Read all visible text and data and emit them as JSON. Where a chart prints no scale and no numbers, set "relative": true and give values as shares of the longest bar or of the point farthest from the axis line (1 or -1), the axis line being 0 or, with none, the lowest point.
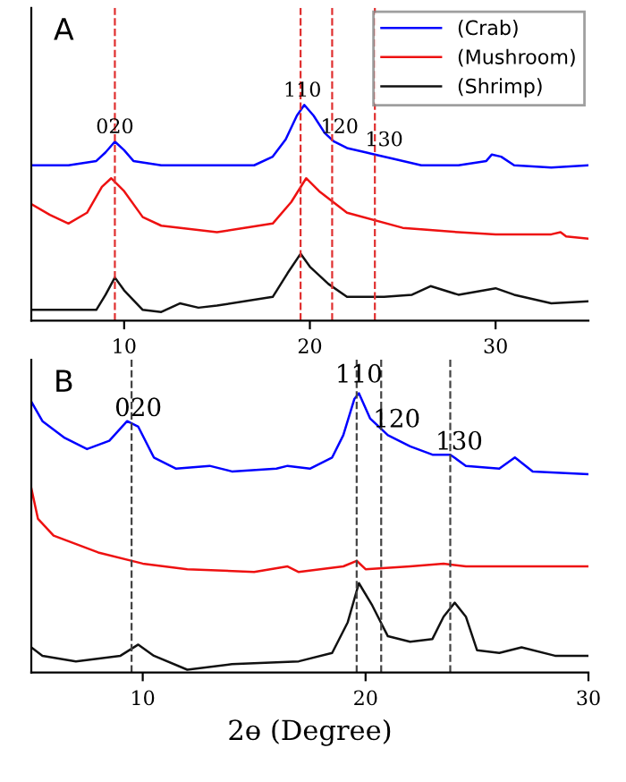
{
  "chart_data": [
    {
      "type": "line",
      "relative": true,
      "xlim": [
        5,
        35
      ],
      "xticks": [
        10,
        20,
        30
      ],
      "legend": "top right",
      "grid": false,
      "annotations": [
        "A",
        {
          "text": "020",
          "x": 9.5,
          "y": 0.85
        },
        {
          "text": "110",
          "x": 19.6,
          "y": 1.02
        },
        {
          "text": "120",
          "x": 21.6,
          "y": 0.85
        },
        {
          "text": "130",
          "x": 24.0,
          "y": 0.79
        }
      ],
      "ref_lines": [
        {
          "axis": "x",
          "value": 9.5,
          "color": "#e03030",
          "line_style": "dashed"
        },
        {
          "axis": "x",
          "value": 19.5,
          "color": "#e03030",
          "line_style": "dashed"
        },
        {
          "axis": "x",
          "value": 21.2,
          "color": "#e03030",
          "line_style": "dashed"
        },
        {
          "axis": "x",
          "value": 23.5,
          "color": "#e03030",
          "line_style": "dashed"
        }
      ],
      "series": [
        {
          "name": "(Crab)",
          "color": "#0000ff",
          "x": [
            5,
            7,
            8.5,
            9,
            9.5,
            10,
            10.5,
            12,
            15,
            17,
            18,
            18.7,
            19.3,
            19.7,
            20.2,
            20.8,
            21.3,
            22,
            23,
            23.5,
            24.5,
            26,
            28,
            29.5,
            29.8,
            30.3,
            31,
            33,
            35
          ],
          "values": [
            0.72,
            0.72,
            0.74,
            0.78,
            0.83,
            0.79,
            0.74,
            0.72,
            0.72,
            0.72,
            0.76,
            0.84,
            0.95,
            1.0,
            0.95,
            0.87,
            0.83,
            0.8,
            0.78,
            0.77,
            0.75,
            0.72,
            0.72,
            0.74,
            0.77,
            0.76,
            0.72,
            0.71,
            0.72
          ]
        },
        {
          "name": "(Mushroom)",
          "color": "#ee1111",
          "x": [
            5,
            6,
            7,
            8,
            8.8,
            9.3,
            10,
            11,
            12,
            15,
            18,
            19,
            19.8,
            20.5,
            22,
            25,
            28,
            30,
            33,
            33.5,
            33.8,
            35
          ],
          "values": [
            0.54,
            0.49,
            0.45,
            0.5,
            0.62,
            0.66,
            0.6,
            0.48,
            0.44,
            0.41,
            0.45,
            0.55,
            0.66,
            0.6,
            0.5,
            0.43,
            0.41,
            0.4,
            0.4,
            0.41,
            0.39,
            0.38
          ]
        },
        {
          "name": "(Shrimp)",
          "color": "#111111",
          "x": [
            5,
            7,
            8.5,
            9,
            9.5,
            10,
            11,
            12,
            13,
            14,
            15,
            18,
            18.8,
            19.5,
            20,
            21,
            22,
            24,
            25.5,
            26.5,
            28,
            30,
            31,
            33,
            35
          ],
          "values": [
            0.05,
            0.05,
            0.05,
            0.12,
            0.2,
            0.14,
            0.05,
            0.04,
            0.08,
            0.06,
            0.07,
            0.11,
            0.22,
            0.31,
            0.25,
            0.17,
            0.11,
            0.11,
            0.12,
            0.16,
            0.12,
            0.15,
            0.12,
            0.08,
            0.09
          ]
        }
      ]
    },
    {
      "type": "line",
      "relative": true,
      "xlim": [
        5,
        30
      ],
      "xticks": [
        10,
        20,
        30
      ],
      "xlabel": "2ɵ (Degree)",
      "grid": false,
      "annotations": [
        "B",
        {
          "text": "020",
          "x": 9.8,
          "y": 0.9
        },
        {
          "text": "110",
          "x": 19.7,
          "y": 1.02
        },
        {
          "text": "120",
          "x": 21.4,
          "y": 0.86
        },
        {
          "text": "130",
          "x": 24.2,
          "y": 0.78
        }
      ],
      "ref_lines": [
        {
          "axis": "x",
          "value": 9.5,
          "color": "#444444",
          "line_style": "dashed"
        },
        {
          "axis": "x",
          "value": 19.6,
          "color": "#444444",
          "line_style": "dashed"
        },
        {
          "axis": "x",
          "value": 20.7,
          "color": "#444444",
          "line_style": "dashed"
        },
        {
          "axis": "x",
          "value": 23.8,
          "color": "#444444",
          "line_style": "dashed"
        }
      ],
      "series": [
        {
          "color": "#0000ff",
          "x": [
            5,
            5.5,
            6.5,
            7.5,
            8.5,
            9.3,
            9.8,
            10.5,
            11.5,
            13,
            14,
            16,
            16.5,
            17.5,
            18.5,
            19,
            19.5,
            19.7,
            20.2,
            21,
            22,
            23,
            23.8,
            24.5,
            26,
            26.7,
            27.5,
            30
          ],
          "values": [
            0.97,
            0.9,
            0.84,
            0.8,
            0.83,
            0.9,
            0.88,
            0.77,
            0.73,
            0.74,
            0.72,
            0.73,
            0.74,
            0.73,
            0.77,
            0.85,
            0.98,
            1.0,
            0.91,
            0.85,
            0.81,
            0.78,
            0.78,
            0.74,
            0.73,
            0.77,
            0.72,
            0.71
          ]
        },
        {
          "color": "#ee1111",
          "x": [
            5,
            5.3,
            6,
            8,
            10,
            12,
            15,
            16.5,
            17,
            19,
            19.6,
            20,
            22,
            23.5,
            24.5,
            30
          ],
          "values": [
            0.66,
            0.55,
            0.49,
            0.43,
            0.39,
            0.37,
            0.36,
            0.38,
            0.36,
            0.38,
            0.4,
            0.37,
            0.38,
            0.39,
            0.38,
            0.38
          ]
        },
        {
          "color": "#111111",
          "x": [
            5,
            5.5,
            7,
            9,
            9.8,
            10.5,
            12,
            14,
            17,
            18.5,
            19.2,
            19.7,
            20.3,
            21,
            22,
            23,
            23.5,
            24,
            24.5,
            25,
            26,
            27,
            28.5,
            30
          ],
          "values": [
            0.09,
            0.06,
            0.04,
            0.06,
            0.1,
            0.06,
            0.01,
            0.03,
            0.04,
            0.07,
            0.18,
            0.32,
            0.24,
            0.13,
            0.11,
            0.12,
            0.2,
            0.25,
            0.2,
            0.08,
            0.07,
            0.09,
            0.06,
            0.06
          ]
        }
      ]
    }
  ]
}
